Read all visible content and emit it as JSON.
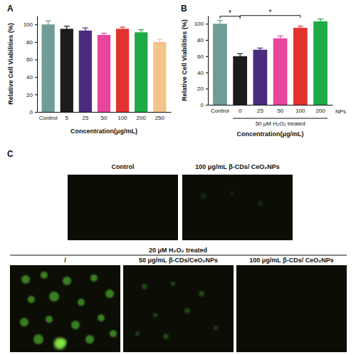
{
  "chart_data": [
    {
      "type": "bar",
      "title": "A",
      "categories": [
        "Control",
        "5",
        "25",
        "50",
        "100",
        "200",
        "250"
      ],
      "values": [
        100,
        95,
        93,
        88,
        95,
        91,
        80
      ],
      "errors": [
        4,
        3,
        3,
        2,
        2,
        3,
        3
      ],
      "colors": [
        "#6f9c96",
        "#1c1c1c",
        "#4a2c7c",
        "#e8469c",
        "#e3332f",
        "#1eaa45",
        "#f4c48c"
      ],
      "x_label": "Concentration(μg/mL)",
      "y_label": "Relative Cell Viabilities (%)",
      "ylim": [
        0,
        110
      ],
      "yticks": [
        0,
        20,
        40,
        60,
        80,
        100
      ]
    },
    {
      "type": "bar",
      "title": "B",
      "categories": [
        "Control",
        "0",
        "25",
        "50",
        "100",
        "200"
      ],
      "values": [
        100,
        60,
        68,
        82,
        95,
        103
      ],
      "errors": [
        4,
        3,
        2,
        3,
        2,
        3
      ],
      "colors": [
        "#6f9c96",
        "#1c1c1c",
        "#4a2c7c",
        "#e8469c",
        "#e3332f",
        "#1eaa45"
      ],
      "x_label": "Concentration(μg/mL)",
      "y_label": "Relative Cell Viabilities (%)",
      "x_group_label": "50 μM H₂O₂ treated",
      "x_end_label": "NPs",
      "annotations": [
        {
          "text": "*",
          "between": [
            "Control",
            "0"
          ]
        },
        {
          "text": "*",
          "between": [
            "0",
            "100"
          ]
        }
      ],
      "ylim": [
        0,
        110
      ],
      "yticks": [
        0,
        20,
        40,
        60,
        80,
        100
      ]
    }
  ],
  "panel_c": {
    "label": "C",
    "top_titles": [
      "Control",
      "100 μg/mL  β-CDs/ CeO₂NPs"
    ],
    "group_title": "20 μM  H₂O₂  treated",
    "bottom_titles": [
      "/",
      "50 μg/mL β-CDs/CeO₂NPs",
      "100 μg/mL β-CDs/ CeO₂NPs"
    ]
  }
}
